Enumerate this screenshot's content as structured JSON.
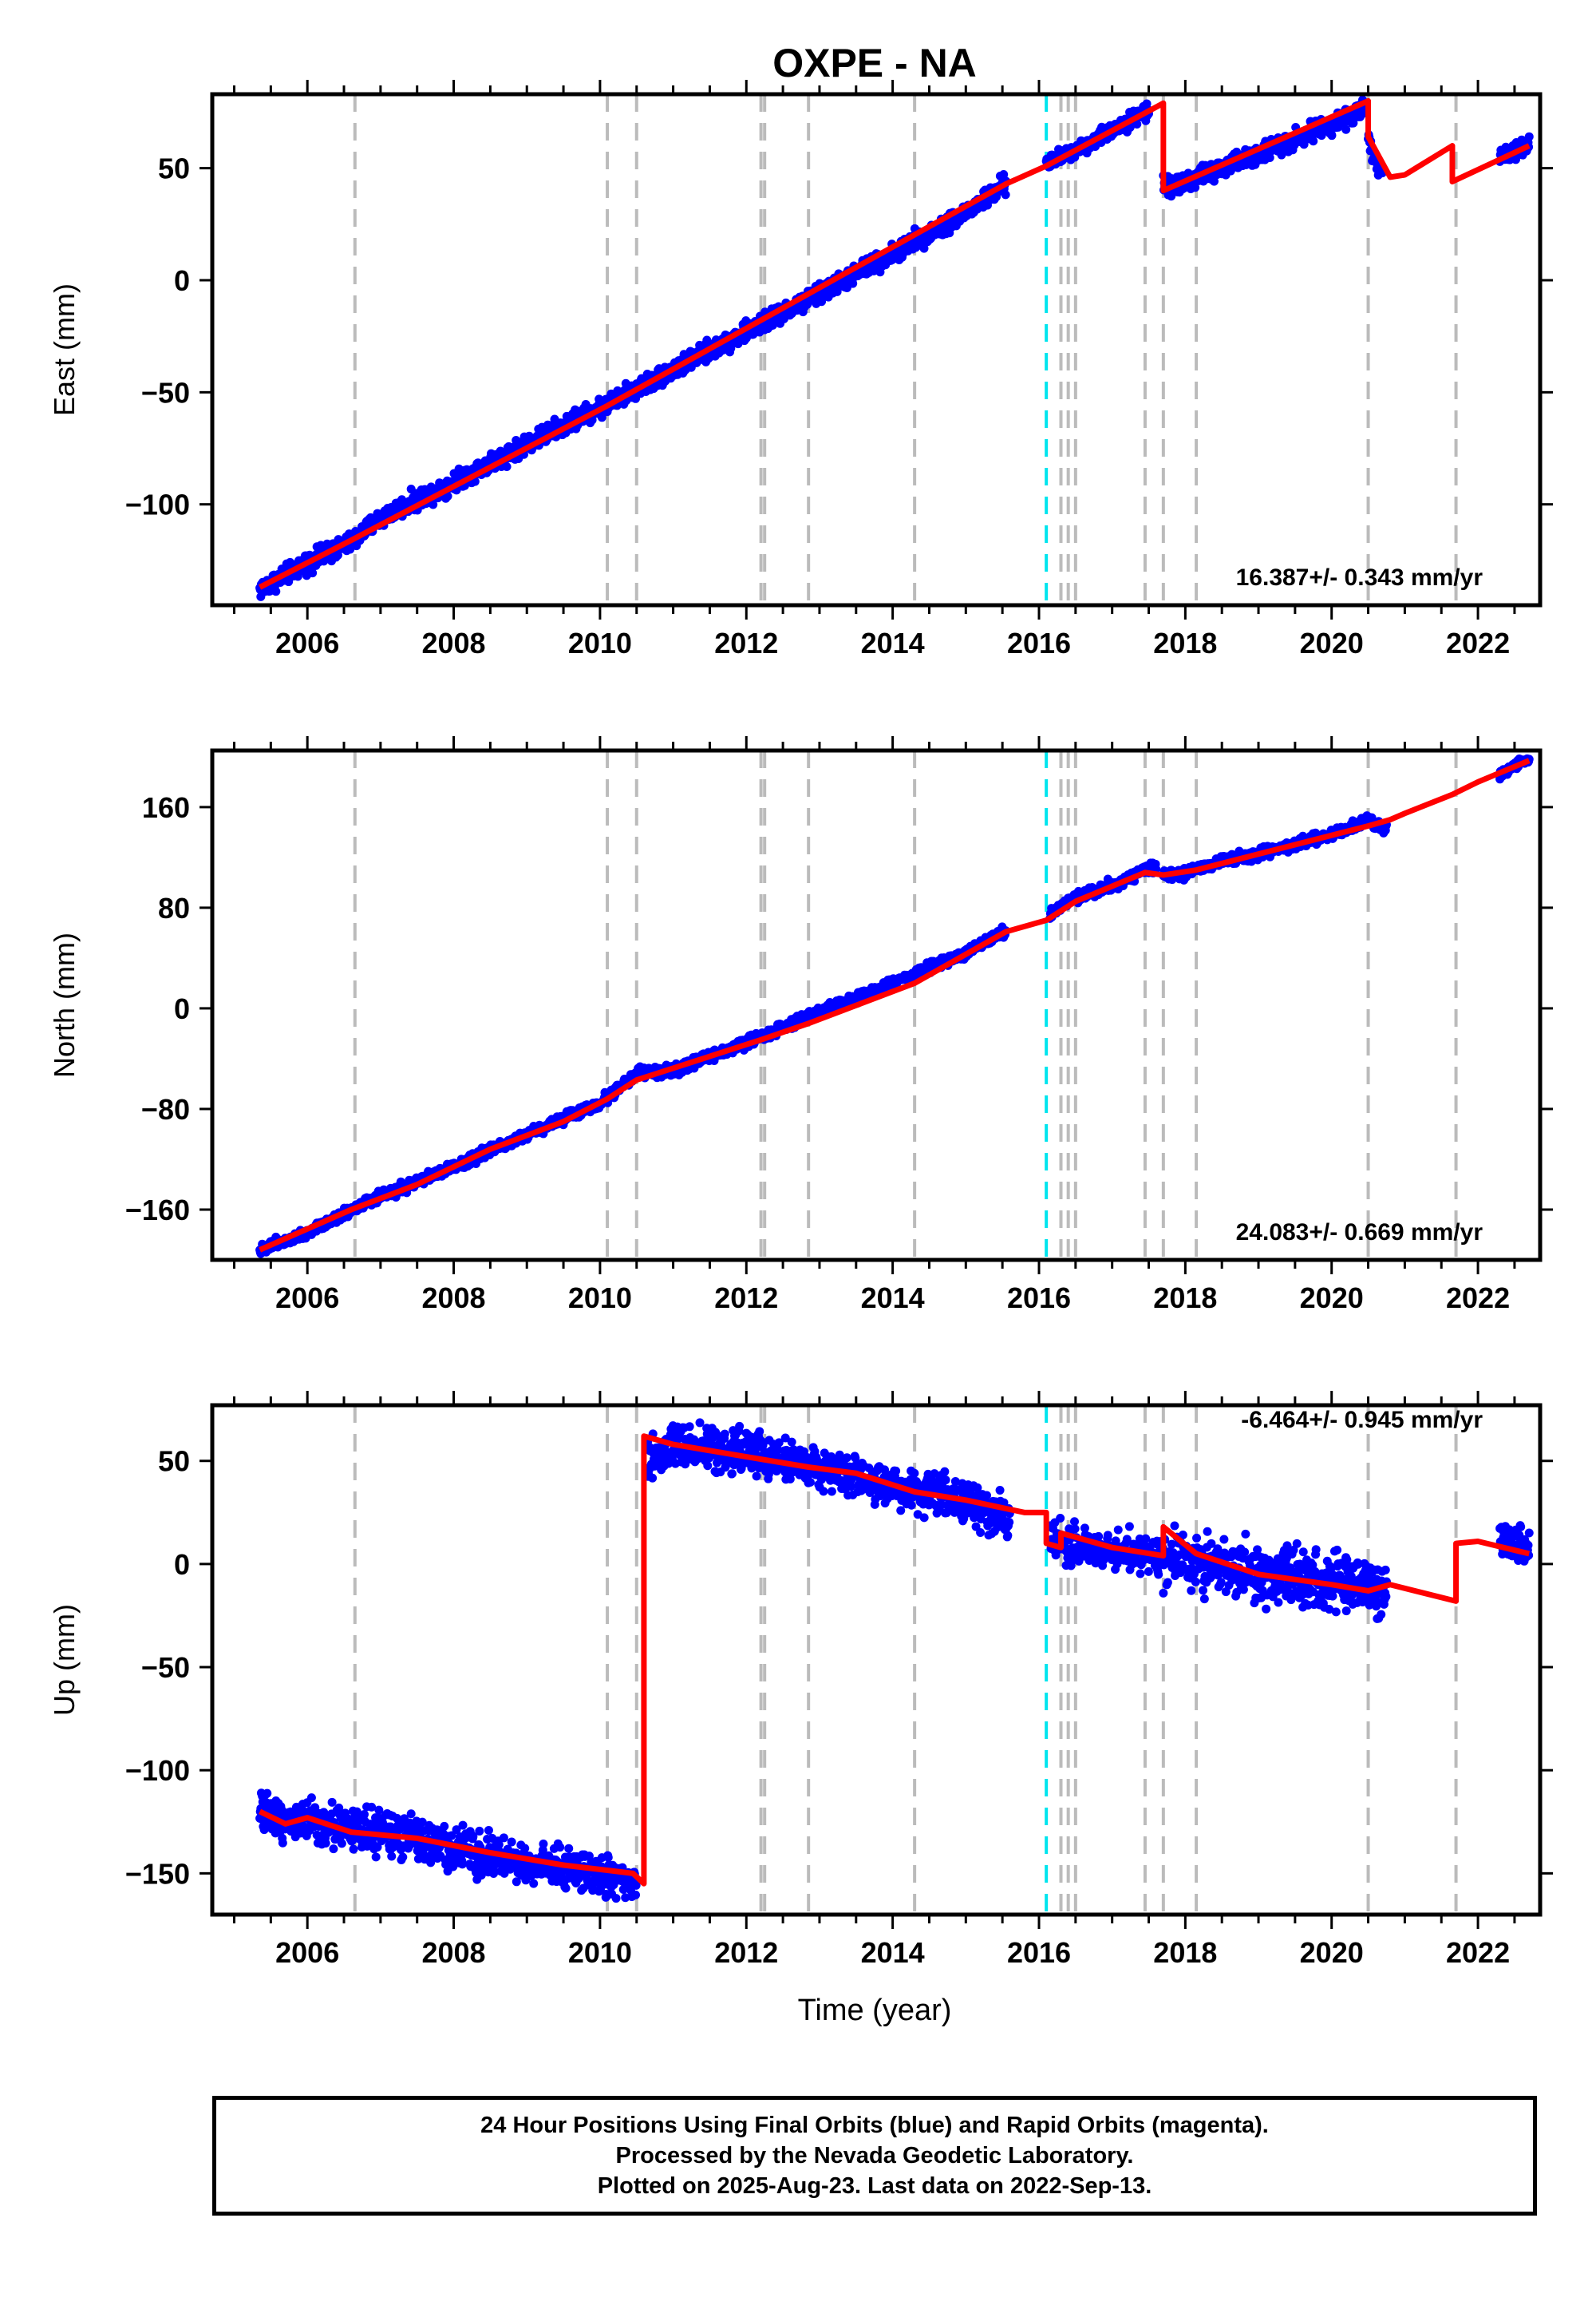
{
  "title": "OXPE - NA",
  "xlabel": "Time (year)",
  "colors": {
    "data_points": "#0000ff",
    "model_line": "#ff0000",
    "event_lines": "#bbbbbb",
    "highlight_event": "#00e5ee",
    "frame": "#000000"
  },
  "footer": {
    "line1": "24 Hour Positions Using Final Orbits (blue) and Rapid Orbits (magenta).",
    "line2": "Processed by the Nevada Geodetic Laboratory.",
    "line3": "Plotted on 2025-Aug-23. Last data on 2022-Sep-13."
  },
  "chart_data": [
    {
      "type": "scatter",
      "name": "east",
      "ylabel": "East (mm)",
      "rate_label": "16.387+/- 0.343 mm/yr",
      "xlim": [
        2004.7,
        2022.85
      ],
      "ylim": [
        -145,
        83
      ],
      "xticks": [
        2006,
        2008,
        2010,
        2012,
        2014,
        2016,
        2018,
        2020,
        2022
      ],
      "yticks": [
        -100,
        -50,
        0,
        50
      ],
      "data_segments": [
        {
          "x": [
            2005.35,
            2006.0,
            2006.6,
            2007.0,
            2008.0,
            2009.0,
            2010.0,
            2011.0,
            2012.0,
            2013.0,
            2014.0,
            2015.0,
            2015.55
          ],
          "y": [
            -138,
            -126,
            -117,
            -106,
            -90,
            -73,
            -57,
            -40,
            -23,
            -6,
            12,
            30,
            43
          ],
          "scatter": 3
        },
        {
          "x": [
            2016.1,
            2016.5,
            2017.0,
            2017.5
          ],
          "y": [
            52,
            58,
            67,
            76
          ],
          "scatter": 2.5
        },
        {
          "x": [
            2017.7,
            2018.0,
            2018.5,
            2019.0,
            2019.5,
            2020.0,
            2020.45
          ],
          "y": [
            42,
            44,
            50,
            57,
            63,
            70,
            76
          ],
          "scatter": 3
        },
        {
          "x": [
            2020.5,
            2020.6,
            2020.7
          ],
          "y": [
            63,
            52,
            48
          ],
          "scatter": 2.5
        },
        {
          "x": [
            2022.3,
            2022.5,
            2022.7
          ],
          "y": [
            54,
            57,
            61
          ],
          "scatter": 2.5
        }
      ],
      "model": {
        "x": [
          2005.35,
          2006.6,
          2010.1,
          2015.55,
          2016.1,
          2017.7,
          2017.7,
          2020.5,
          2020.5,
          2020.8,
          2021.0,
          2021.65,
          2021.65,
          2022.7
        ],
        "y": [
          -137,
          -116,
          -56,
          43,
          51,
          79,
          40,
          80,
          64,
          46,
          47,
          60,
          44,
          60
        ]
      },
      "events": [
        2006.65,
        2010.1,
        2010.5,
        2012.2,
        2012.25,
        2012.85,
        2014.3,
        2016.3,
        2016.4,
        2016.5,
        2017.45,
        2017.7,
        2018.15,
        2020.5,
        2021.7
      ],
      "highlight_events": [
        2016.1
      ]
    },
    {
      "type": "scatter",
      "name": "north",
      "ylabel": "North (mm)",
      "rate_label": "24.083+/- 0.669 mm/yr",
      "xlim": [
        2004.7,
        2022.85
      ],
      "ylim": [
        -200,
        205
      ],
      "xticks": [
        2006,
        2008,
        2010,
        2012,
        2014,
        2016,
        2018,
        2020,
        2022
      ],
      "yticks": [
        -160,
        -80,
        0,
        80,
        160
      ],
      "data_segments": [
        {
          "x": [
            2005.35,
            2006.0,
            2006.6,
            2007.0,
            2008.0,
            2009.0,
            2010.0,
            2010.5,
            2011.0,
            2012.0,
            2013.0,
            2014.0,
            2015.0,
            2015.55
          ],
          "y": [
            -192,
            -178,
            -160,
            -150,
            -126,
            -100,
            -75,
            -52,
            -50,
            -27,
            -3,
            20,
            44,
            62
          ],
          "scatter": 3
        },
        {
          "x": [
            2016.15,
            2016.5,
            2017.0,
            2017.6
          ],
          "y": [
            75,
            88,
            98,
            113
          ],
          "scatter": 3
        },
        {
          "x": [
            2017.7,
            2018.0,
            2018.5,
            2019.0,
            2019.5,
            2020.0,
            2020.5,
            2020.75
          ],
          "y": [
            106,
            108,
            117,
            123,
            130,
            138,
            150,
            143
          ],
          "scatter": 3
        },
        {
          "x": [
            2022.3,
            2022.5,
            2022.7
          ],
          "y": [
            185,
            193,
            198
          ],
          "scatter": 2.5
        }
      ],
      "model": {
        "x": [
          2005.35,
          2006.6,
          2007.5,
          2008.5,
          2009.5,
          2010.1,
          2010.5,
          2012.2,
          2012.85,
          2014.3,
          2015.55,
          2016.1,
          2016.5,
          2017.45,
          2017.7,
          2018.15,
          2020.5,
          2020.8,
          2021.0,
          2021.65,
          2022.0,
          2022.7
        ],
        "y": [
          -192,
          -160,
          -140,
          -112,
          -90,
          -72,
          -57,
          -25,
          -12,
          20,
          61,
          70,
          85,
          108,
          106,
          110,
          145,
          150,
          155,
          170,
          180,
          197
        ]
      },
      "events": [
        2006.65,
        2010.1,
        2010.5,
        2012.2,
        2012.25,
        2012.85,
        2014.3,
        2016.3,
        2016.4,
        2016.5,
        2017.45,
        2017.7,
        2018.15,
        2020.5,
        2021.7
      ],
      "highlight_events": [
        2016.1
      ]
    },
    {
      "type": "scatter",
      "name": "up",
      "ylabel": "Up (mm)",
      "rate_label": "-6.464+/- 0.945 mm/yr",
      "xlim": [
        2004.7,
        2022.85
      ],
      "ylim": [
        -170,
        77
      ],
      "xticks": [
        2006,
        2008,
        2010,
        2012,
        2014,
        2016,
        2018,
        2020,
        2022
      ],
      "yticks": [
        -150,
        -100,
        -50,
        0,
        50
      ],
      "data_segments": [
        {
          "x": [
            2005.35,
            2006.0,
            2007.0,
            2008.0,
            2009.0,
            2010.0,
            2010.5
          ],
          "y": [
            -121,
            -125,
            -130,
            -138,
            -145,
            -150,
            -157
          ],
          "scatter": 7
        },
        {
          "x": [
            2010.65,
            2011.0,
            2012.0,
            2013.0,
            2014.0,
            2015.0,
            2015.6
          ],
          "y": [
            50,
            57,
            55,
            46,
            38,
            30,
            22
          ],
          "scatter": 7
        },
        {
          "x": [
            2016.15,
            2016.5,
            2017.0,
            2017.7
          ],
          "y": [
            10,
            9,
            7,
            4
          ],
          "scatter": 7
        },
        {
          "x": [
            2017.7,
            2018.0,
            2018.5,
            2019.0,
            2019.5,
            2020.0,
            2020.5,
            2020.75
          ],
          "y": [
            3,
            3,
            -2,
            -6,
            -8,
            -8,
            -11,
            -10
          ],
          "scatter": 10
        },
        {
          "x": [
            2022.3,
            2022.5,
            2022.7
          ],
          "y": [
            14,
            10,
            5
          ],
          "scatter": 6
        }
      ],
      "model": {
        "x": [
          2005.35,
          2005.7,
          2006.0,
          2006.6,
          2007.5,
          2008.5,
          2009.5,
          2010.45,
          2010.6,
          2010.6,
          2011.0,
          2012.0,
          2012.85,
          2013.5,
          2014.3,
          2015.0,
          2015.8,
          2016.1,
          2016.1,
          2016.3,
          2016.3,
          2017.0,
          2017.7,
          2017.7,
          2018.15,
          2019.0,
          2020.0,
          2020.5,
          2020.8,
          2021.7,
          2021.7,
          2022.0,
          2022.7
        ],
        "y": [
          -120,
          -126,
          -123,
          -130,
          -133,
          -140,
          -146,
          -150,
          -155,
          62,
          58,
          52,
          47,
          44,
          35,
          31,
          25,
          25,
          10,
          8,
          15,
          8,
          4,
          18,
          5,
          -5,
          -10,
          -13,
          -10,
          -18,
          10,
          11,
          5
        ]
      },
      "events": [
        2006.65,
        2010.1,
        2010.5,
        2012.2,
        2012.25,
        2012.85,
        2014.3,
        2016.3,
        2016.4,
        2016.5,
        2017.45,
        2017.7,
        2018.15,
        2020.5,
        2021.7
      ],
      "highlight_events": [
        2016.1
      ]
    }
  ]
}
